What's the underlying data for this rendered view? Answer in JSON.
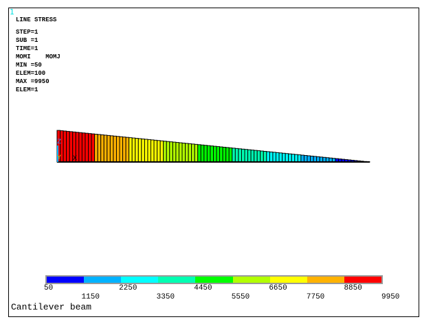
{
  "window_number": "1",
  "header": {
    "title": "LINE STRESS",
    "lines": [
      "STEP=1",
      "SUB =1",
      "TIME=1",
      "MOMI    MOMJ",
      "MIN =50",
      "ELEM=100",
      "MAX =9950",
      "ELEM=1"
    ]
  },
  "axis_triad": {
    "z": "Z",
    "y": "Y",
    "x": "X"
  },
  "legend": {
    "labels": [
      "50",
      "1150",
      "2250",
      "3350",
      "4450",
      "5550",
      "6650",
      "7750",
      "8850",
      "9950"
    ],
    "colors": [
      "#0000ff",
      "#00b2ff",
      "#00ffff",
      "#00ffb2",
      "#00ff00",
      "#b2ff00",
      "#ffff00",
      "#ffb200",
      "#ff0000"
    ]
  },
  "caption": "Cantilever beam",
  "chart_data": {
    "type": "bar",
    "quantity": "MOMI",
    "elements": [
      1,
      2,
      3,
      4,
      5,
      6,
      7,
      8,
      9,
      10,
      11,
      12,
      13,
      14,
      15,
      16,
      17,
      18,
      19,
      20,
      21,
      22,
      23,
      24,
      25,
      26,
      27,
      28,
      29,
      30,
      31,
      32,
      33,
      34,
      35,
      36,
      37,
      38,
      39,
      40,
      41,
      42,
      43,
      44,
      45,
      46,
      47,
      48,
      49,
      50,
      51,
      52,
      53,
      54,
      55,
      56,
      57,
      58,
      59,
      60,
      61,
      62,
      63,
      64,
      65,
      66,
      67,
      68,
      69,
      70,
      71,
      72,
      73,
      74,
      75,
      76,
      77,
      78,
      79,
      80,
      81,
      82,
      83,
      84,
      85,
      86,
      87,
      88,
      89,
      90,
      91,
      92,
      93,
      94,
      95,
      96,
      97,
      98,
      99,
      100
    ],
    "values": [
      9950,
      9850,
      9750,
      9650,
      9550,
      9450,
      9350,
      9250,
      9150,
      9050,
      8950,
      8850,
      8750,
      8650,
      8550,
      8450,
      8350,
      8250,
      8150,
      8050,
      7950,
      7850,
      7750,
      7650,
      7550,
      7450,
      7350,
      7250,
      7150,
      7050,
      6950,
      6850,
      6750,
      6650,
      6550,
      6450,
      6350,
      6250,
      6150,
      6050,
      5950,
      5850,
      5750,
      5650,
      5550,
      5450,
      5350,
      5250,
      5150,
      5050,
      4950,
      4850,
      4750,
      4650,
      4550,
      4450,
      4350,
      4250,
      4150,
      4050,
      3950,
      3850,
      3750,
      3650,
      3550,
      3450,
      3350,
      3250,
      3150,
      3050,
      2950,
      2850,
      2750,
      2650,
      2550,
      2450,
      2350,
      2250,
      2150,
      2050,
      1950,
      1850,
      1750,
      1650,
      1550,
      1450,
      1350,
      1250,
      1150,
      1050,
      950,
      850,
      750,
      650,
      550,
      450,
      350,
      250,
      150,
      50
    ],
    "min": 50,
    "max": 9950
  }
}
